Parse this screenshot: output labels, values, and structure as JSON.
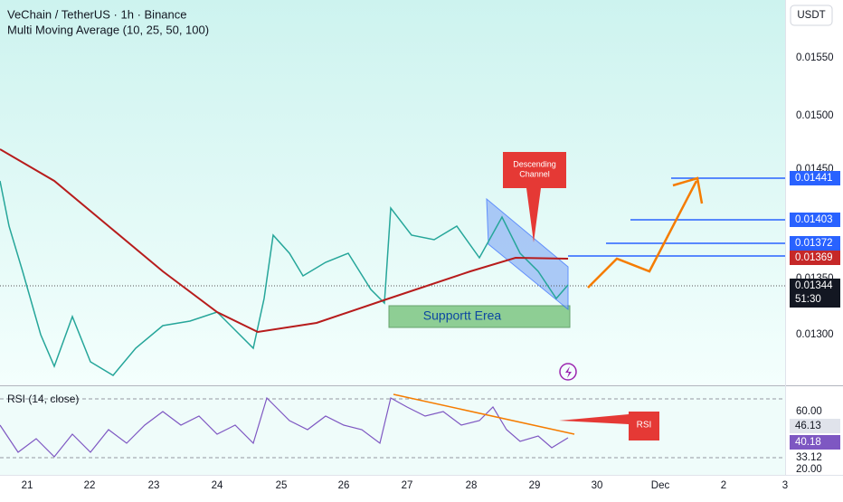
{
  "header": {
    "title": "VeChain / TetherUS · 1h · Binance",
    "indicator": "Multi Moving Average (10, 25, 50, 100)",
    "currency": "USDT"
  },
  "price_axis": {
    "labels": [
      "0.01550",
      "0.01500",
      "0.01450",
      "0.01350",
      "0.01300"
    ],
    "levels": [
      "0.01441",
      "0.01403",
      "0.01372"
    ],
    "ma_price": "0.01369",
    "last_price": "0.01344",
    "countdown": "51:30"
  },
  "annotations": {
    "channel": [
      "Descending",
      "Channel"
    ],
    "support": "Supportt Erea",
    "rsi": "RSI"
  },
  "rsi": {
    "title": "RSI (14, close)",
    "labels": [
      "60.00",
      "33.12",
      "20.00"
    ],
    "ma": "46.13",
    "current": "40.18"
  },
  "dates": [
    "21",
    "22",
    "23",
    "24",
    "25",
    "26",
    "27",
    "28",
    "29",
    "30",
    "Dec",
    "2",
    "3"
  ]
}
